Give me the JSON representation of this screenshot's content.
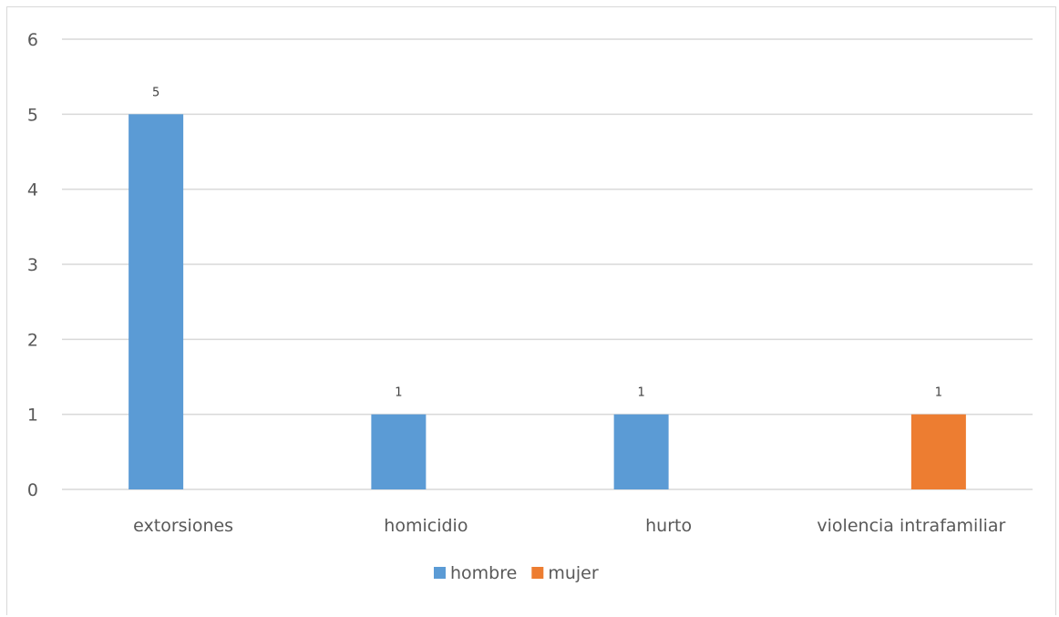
{
  "chart_data": {
    "type": "bar",
    "title": "",
    "xlabel": "",
    "ylabel": "",
    "categories": [
      "extorsiones",
      "homicidio",
      "hurto",
      "violencia intrafamiliar"
    ],
    "series": [
      {
        "name": "hombre",
        "color": "#5b9bd5",
        "values": [
          5,
          1,
          1,
          null
        ]
      },
      {
        "name": "mujer",
        "color": "#ed7d31",
        "values": [
          null,
          null,
          null,
          1
        ]
      }
    ],
    "ylim": [
      0,
      6
    ],
    "yticks": [
      "0",
      "1",
      "2",
      "3",
      "4",
      "5",
      "6"
    ],
    "data_labels": true,
    "grid": true,
    "legend": "bottom"
  }
}
